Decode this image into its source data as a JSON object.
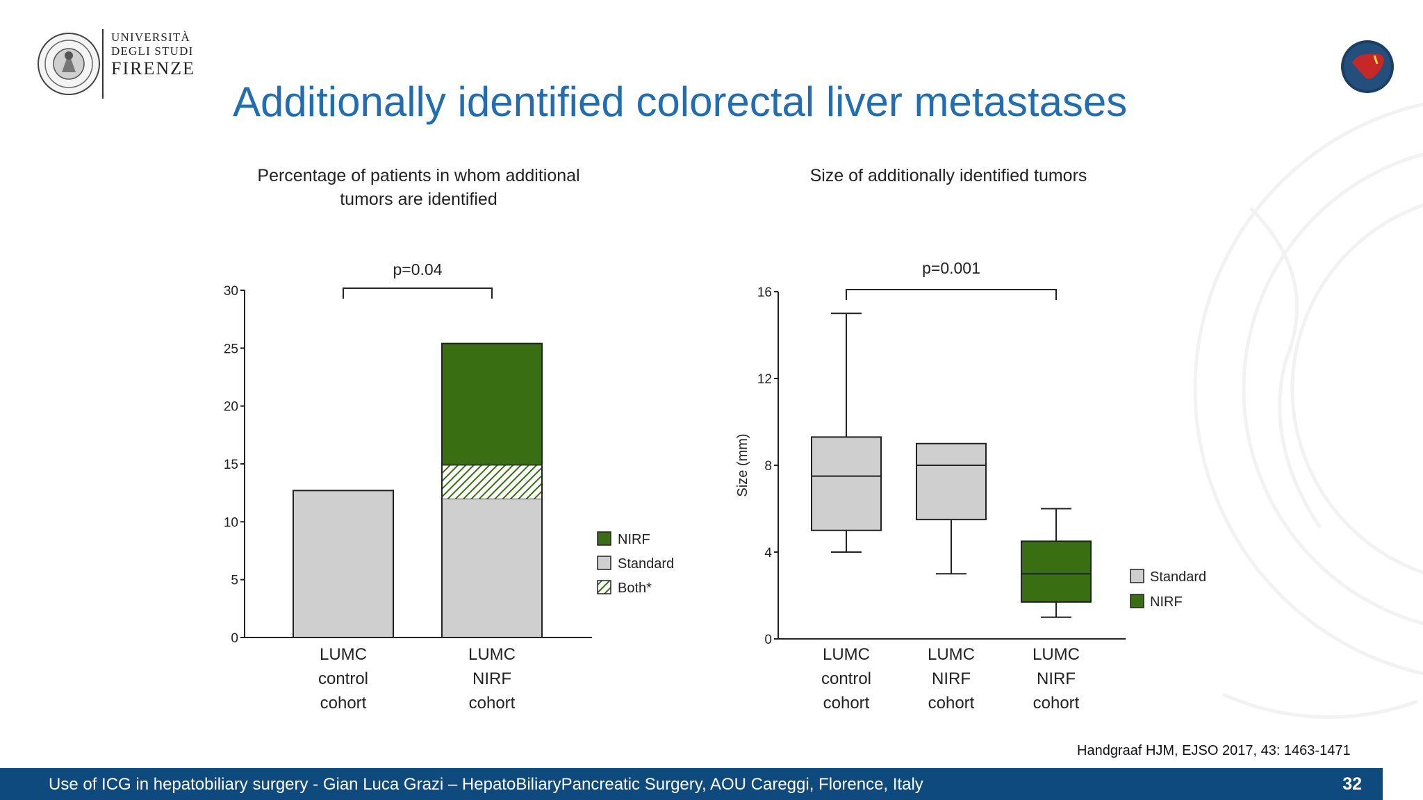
{
  "slide": {
    "title": "Additionally identified colorectal liver metastases",
    "logo": {
      "line1": "UNIVERSITÀ",
      "line2": "DEGLI STUDI",
      "line3": "FIRENZE",
      "seal_text": "FLORENTINA STUDIORUM UNIVERSITAS"
    },
    "badge_icon": "liver-icon",
    "citation": "Handgraaf HJM, EJSO 2017, 43: 1463-1471",
    "footer_text": "Use of ICG in hepatobiliary surgery - Gian Luca Grazi – HepatoBiliaryPancreatic Surgery, AOU Careggi, Florence, Italy",
    "page_number": "32"
  },
  "colors": {
    "title_blue": "#1f6db4",
    "footer_blue": "#0f4a7e",
    "nirf_green": "#3a6e12",
    "standard_gray": "#cfcfcf"
  },
  "chart_data": [
    {
      "type": "bar",
      "stacked": true,
      "title": "Percentage of patients in whom additional tumors are identified",
      "categories": [
        [
          "LUMC",
          "control",
          "cohort"
        ],
        [
          "LUMC",
          "NIRF",
          "cohort"
        ]
      ],
      "series": [
        {
          "name": "Standard",
          "values": [
            12.7,
            12.0
          ]
        },
        {
          "name": "Both*",
          "values": [
            0,
            2.9
          ]
        },
        {
          "name": "NIRF",
          "values": [
            0,
            10.5
          ]
        }
      ],
      "ylim": [
        0,
        30
      ],
      "yticks": [
        0,
        5,
        10,
        15,
        20,
        25,
        30
      ],
      "ylabel": "",
      "annotation": "p=0.04",
      "legend": [
        "NIRF",
        "Standard",
        "Both*"
      ],
      "legend_position": "right",
      "grid": false
    },
    {
      "type": "box",
      "title": "Size of additionally identified tumors",
      "categories": [
        [
          "LUMC",
          "control",
          "cohort"
        ],
        [
          "LUMC",
          "NIRF",
          "cohort"
        ],
        [
          "LUMC",
          "NIRF",
          "cohort"
        ]
      ],
      "boxes": [
        {
          "series": "Standard",
          "min": 4,
          "q1": 5,
          "median": 7.5,
          "q3": 9.3,
          "max": 15
        },
        {
          "series": "Standard",
          "min": 3,
          "q1": 5.5,
          "median": 8,
          "q3": 9,
          "max": 9
        },
        {
          "series": "NIRF",
          "min": 1,
          "q1": 1.7,
          "median": 3,
          "q3": 4.5,
          "max": 6
        }
      ],
      "ylim": [
        0,
        16
      ],
      "yticks": [
        0,
        4,
        8,
        12,
        16
      ],
      "ylabel": "Size  (mm)",
      "annotation": "p=0.001",
      "legend": [
        "Standard",
        "NIRF"
      ],
      "legend_position": "right",
      "grid": false
    }
  ]
}
